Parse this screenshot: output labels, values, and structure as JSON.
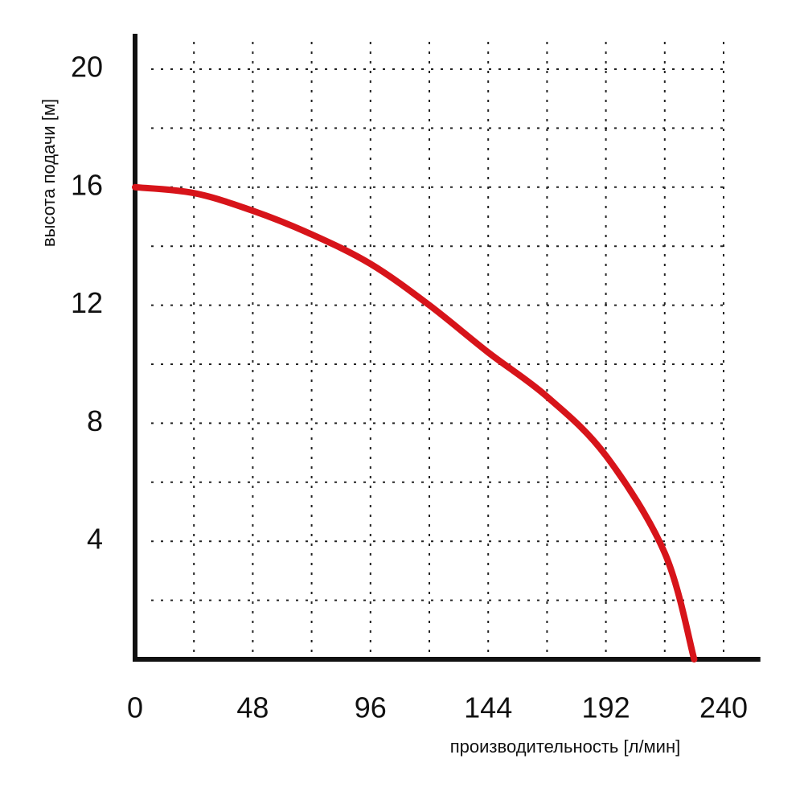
{
  "chart_data": {
    "type": "line",
    "x_label": "производительность [л/мин]",
    "y_label": "высота подачи [м]",
    "x": [
      0,
      24,
      48,
      72,
      96,
      120,
      144,
      168,
      192,
      216,
      228
    ],
    "series": [
      {
        "color": "#d7141a",
        "values": [
          16,
          15.8,
          15.2,
          14.4,
          13.4,
          12.0,
          10.4,
          8.9,
          6.9,
          3.6,
          0
        ]
      }
    ],
    "xlim": [
      0,
      255
    ],
    "ylim": [
      0,
      21.2
    ],
    "xticks": [
      0,
      48,
      96,
      144,
      192,
      240
    ],
    "yticks": [
      4,
      8,
      12,
      16,
      20
    ],
    "xgrid": [
      24,
      48,
      72,
      96,
      120,
      144,
      168,
      192,
      216,
      240
    ],
    "ygrid": [
      2,
      4,
      6,
      8,
      10,
      12,
      14,
      16,
      18,
      20
    ],
    "grid": true
  }
}
